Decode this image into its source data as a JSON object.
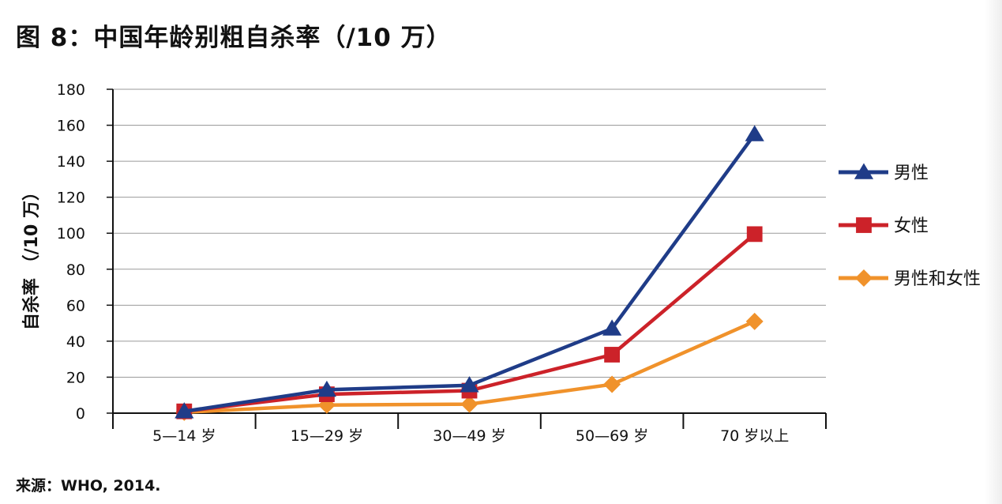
{
  "title": "图 8：中国年龄别粗自杀率（/10 万）",
  "source": "来源：WHO, 2014.",
  "chart_data": {
    "type": "line",
    "categories": [
      "5—14 岁",
      "15—29 岁",
      "30—49 岁",
      "50—69 岁",
      "70 岁以上"
    ],
    "ylabel": "自杀率 （/10 万）",
    "xlabel": "",
    "ylim": [
      0,
      180
    ],
    "yticks": [
      0,
      20,
      40,
      60,
      80,
      100,
      120,
      140,
      160,
      180
    ],
    "grid": true,
    "legend_position": "right",
    "series": [
      {
        "name": "男性",
        "values": [
          1,
          13,
          15.5,
          47,
          155
        ],
        "color": "#1f3c88",
        "marker": "triangle"
      },
      {
        "name": "女性",
        "values": [
          1,
          10.5,
          12.5,
          32.5,
          99.5
        ],
        "color": "#cc2229",
        "marker": "square"
      },
      {
        "name": "男性和女性",
        "values": [
          0.5,
          4.5,
          5,
          16,
          51
        ],
        "color": "#f0922b",
        "marker": "diamond"
      }
    ]
  }
}
